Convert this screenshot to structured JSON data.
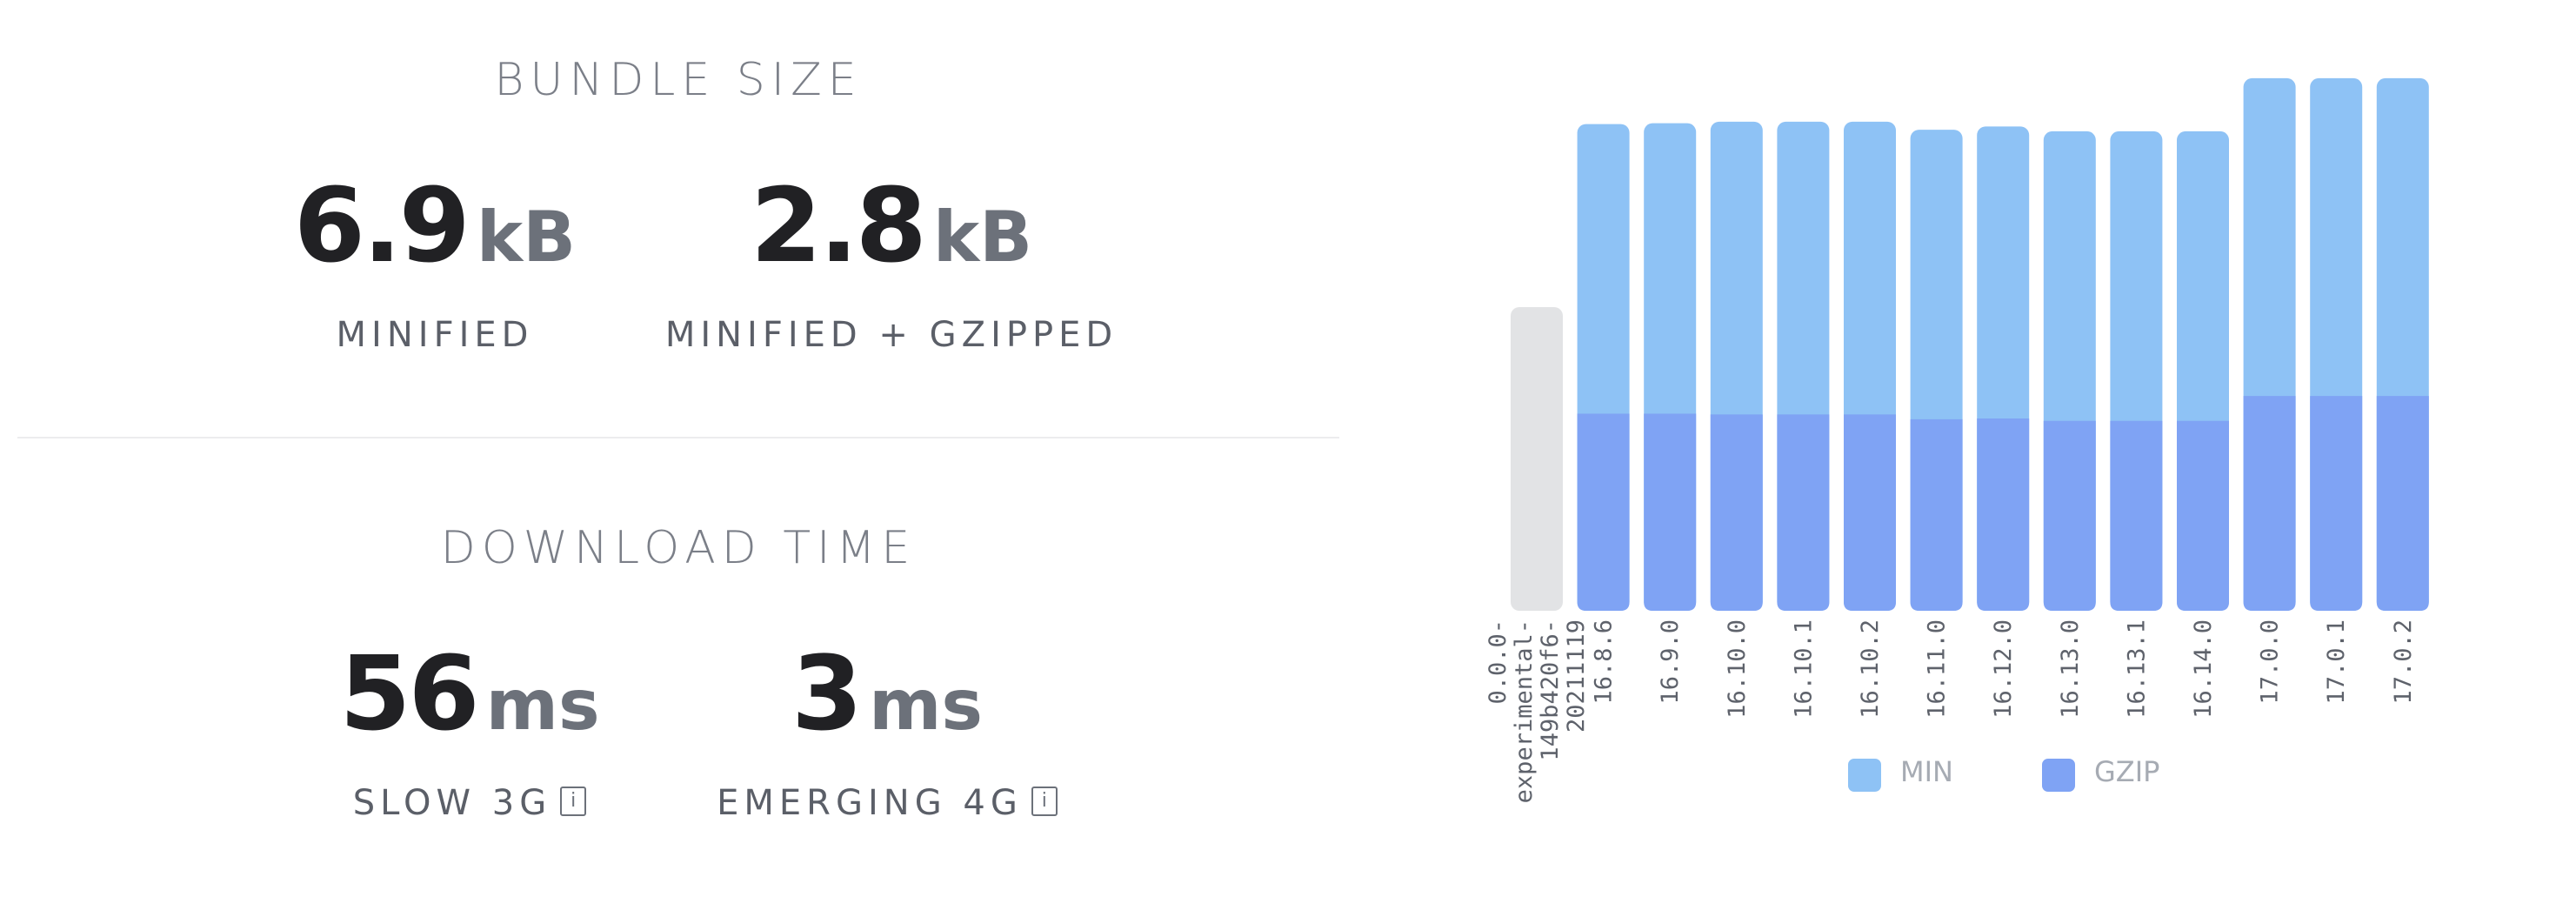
{
  "bundle": {
    "title": "BUNDLE SIZE",
    "minified": {
      "value": "6.9",
      "unit": "kB",
      "label": "MINIFIED"
    },
    "gzipped": {
      "value": "2.8",
      "unit": "kB",
      "label": "MINIFIED + GZIPPED"
    }
  },
  "download": {
    "title": "DOWNLOAD TIME",
    "slow3g": {
      "value": "56",
      "unit": "ms",
      "label": "SLOW 3G"
    },
    "emerging4g": {
      "value": "3",
      "unit": "ms",
      "label": "EMERGING 4G"
    }
  },
  "info_icon_glyph": "i",
  "chart_data": {
    "type": "bar",
    "stacked": true,
    "categories": [
      "0.0.0-experimental-149b420f6-20211119",
      "16.8.6",
      "16.9.0",
      "16.10.0",
      "16.10.1",
      "16.10.2",
      "16.11.0",
      "16.12.0",
      "16.13.0",
      "16.13.1",
      "16.14.0",
      "17.0.0",
      "17.0.1",
      "17.0.2"
    ],
    "tick_labels": [
      [
        "0.0.0-",
        "experimental-",
        "149b420f6-",
        "20211119"
      ],
      [
        "16.8.6"
      ],
      [
        "16.9.0"
      ],
      [
        "16.10.0"
      ],
      [
        "16.10.1"
      ],
      [
        "16.10.2"
      ],
      [
        "16.11.0"
      ],
      [
        "16.12.0"
      ],
      [
        "16.13.0"
      ],
      [
        "16.13.1"
      ],
      [
        "16.14.0"
      ],
      [
        "17.0.0"
      ],
      [
        "17.0.1"
      ],
      [
        "17.0.2"
      ]
    ],
    "series": [
      {
        "name": "GZIP",
        "color": "#7fa3f4",
        "values": [
          null,
          2.45,
          2.45,
          2.44,
          2.44,
          2.44,
          2.38,
          2.39,
          2.36,
          2.36,
          2.36,
          2.67,
          2.67,
          2.67
        ]
      },
      {
        "name": "MIN",
        "color": "#8ec2f5",
        "values": [
          null,
          3.6,
          3.61,
          3.64,
          3.64,
          3.64,
          3.6,
          3.63,
          3.6,
          3.6,
          3.6,
          3.95,
          3.95,
          3.95
        ]
      }
    ],
    "placeholder_index": 0,
    "placeholder_color": "#e2e3e5",
    "legend": [
      {
        "label": "MIN",
        "color": "#8ec2f5"
      },
      {
        "label": "GZIP",
        "color": "#7fa3f4"
      }
    ],
    "legend_position": "bottom",
    "ylim": [
      0,
      6.9
    ],
    "grid": false
  }
}
